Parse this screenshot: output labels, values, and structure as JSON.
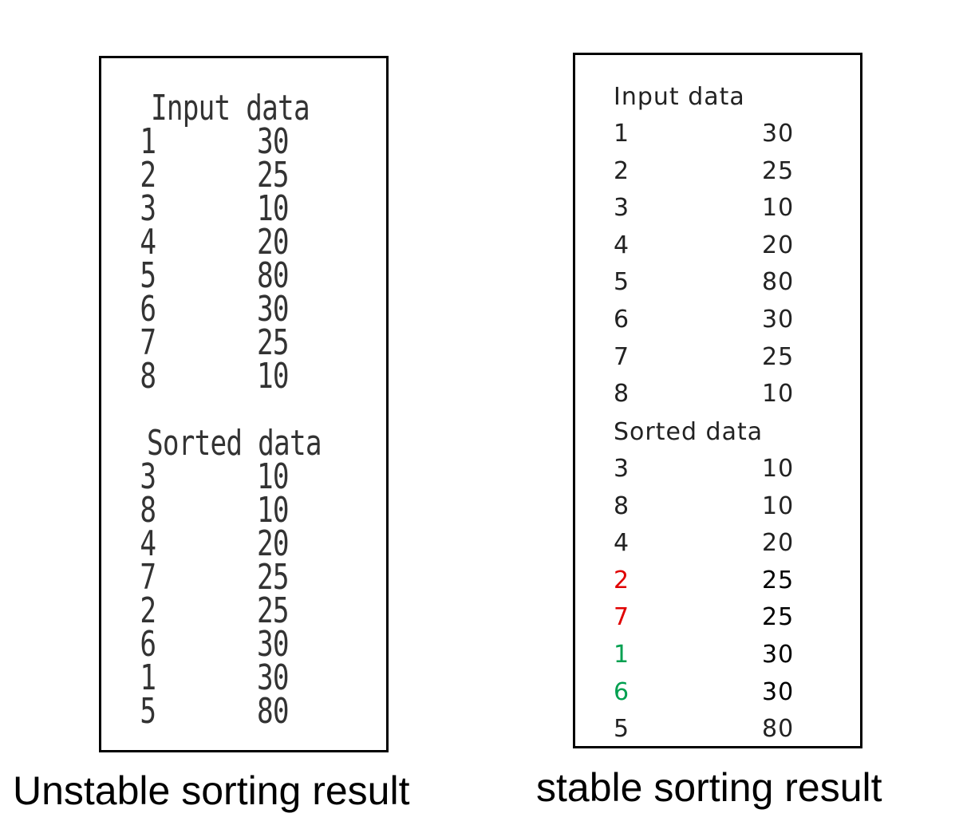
{
  "left": {
    "caption": "Unstable sorting result",
    "input_heading": "Input data",
    "input_rows": [
      {
        "id": "1",
        "value": "30"
      },
      {
        "id": "2",
        "value": "25"
      },
      {
        "id": "3",
        "value": "10"
      },
      {
        "id": "4",
        "value": "20"
      },
      {
        "id": "5",
        "value": "80"
      },
      {
        "id": "6",
        "value": "30"
      },
      {
        "id": "7",
        "value": "25"
      },
      {
        "id": "8",
        "value": "10"
      }
    ],
    "sorted_heading": "Sorted data",
    "sorted_rows": [
      {
        "id": "3",
        "value": "10"
      },
      {
        "id": "8",
        "value": "10"
      },
      {
        "id": "4",
        "value": "20"
      },
      {
        "id": "7",
        "value": "25"
      },
      {
        "id": "2",
        "value": "25"
      },
      {
        "id": "6",
        "value": "30"
      },
      {
        "id": "1",
        "value": "30"
      },
      {
        "id": "5",
        "value": "80"
      }
    ]
  },
  "right": {
    "caption": "stable sorting result",
    "input_heading": "Input data",
    "input_rows": [
      {
        "id": "1",
        "value": "30"
      },
      {
        "id": "2",
        "value": "25"
      },
      {
        "id": "3",
        "value": "10"
      },
      {
        "id": "4",
        "value": "20"
      },
      {
        "id": "5",
        "value": "80"
      },
      {
        "id": "6",
        "value": "30"
      },
      {
        "id": "7",
        "value": "25"
      },
      {
        "id": "8",
        "value": "10"
      }
    ],
    "sorted_heading": "Sorted data",
    "sorted_rows": [
      {
        "id": "3",
        "value": "10"
      },
      {
        "id": "8",
        "value": "10"
      },
      {
        "id": "4",
        "value": "20"
      },
      {
        "id": "2",
        "value": "25",
        "highlight": "#e00000"
      },
      {
        "id": "7",
        "value": "25",
        "highlight": "#e00000"
      },
      {
        "id": "1",
        "value": "30",
        "highlight": "#00a050"
      },
      {
        "id": "6",
        "value": "30",
        "highlight": "#00a050"
      },
      {
        "id": "5",
        "value": "80"
      }
    ]
  }
}
